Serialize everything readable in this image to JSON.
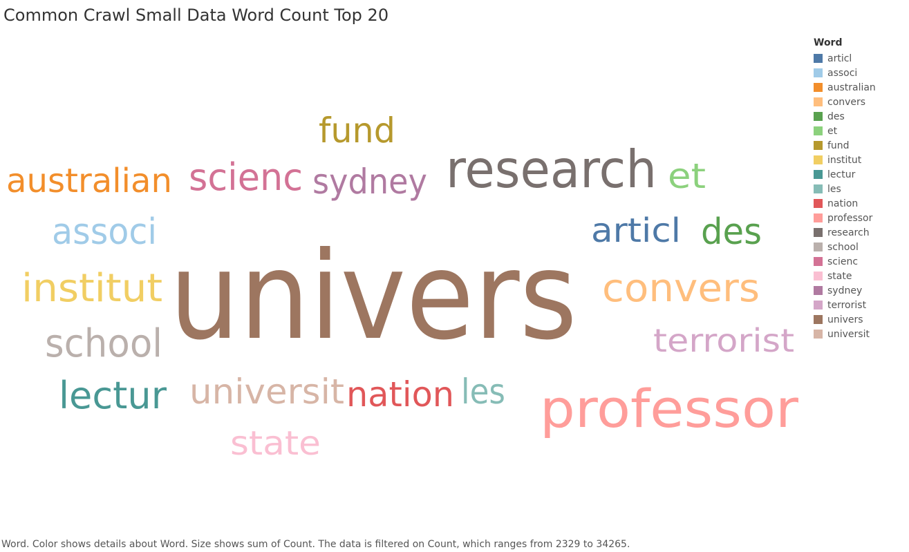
{
  "title": "Common Crawl Small Data Word Count Top 20",
  "legend": {
    "title": "Word"
  },
  "caption": "Word.  Color shows details about Word.  Size shows sum of Count. The data is filtered on Count, which ranges from 2329 to 34265.",
  "chart_data": {
    "type": "wordcloud",
    "title": "Common Crawl Small Data Word Count Top 20",
    "legend_title": "Word",
    "legend_placement": "right",
    "count_range": [
      2329,
      34265
    ],
    "words": [
      {
        "word": "articl",
        "color": "#4e79a7",
        "count": 5400
      },
      {
        "word": "associ",
        "color": "#a0cbe8",
        "count": 5700
      },
      {
        "word": "australian",
        "color": "#f28e2b",
        "count": 5100
      },
      {
        "word": "convers",
        "color": "#ffbe7d",
        "count": 6200
      },
      {
        "word": "des",
        "color": "#59a14f",
        "count": 5300
      },
      {
        "word": "et",
        "color": "#8cd17d",
        "count": 4600
      },
      {
        "word": "fund",
        "color": "#b6992d",
        "count": 5200
      },
      {
        "word": "institut",
        "color": "#f1ce63",
        "count": 6300
      },
      {
        "word": "lectur",
        "color": "#499894",
        "count": 6000
      },
      {
        "word": "les",
        "color": "#86bcb6",
        "count": 2329
      },
      {
        "word": "nation",
        "color": "#e15759",
        "count": 4800
      },
      {
        "word": "professor",
        "color": "#ff9d9a",
        "count": 11000
      },
      {
        "word": "research",
        "color": "#79706e",
        "count": 11000
      },
      {
        "word": "school",
        "color": "#bab0ac",
        "count": 6100
      },
      {
        "word": "scienc",
        "color": "#d37295",
        "count": 5900
      },
      {
        "word": "state",
        "color": "#fabfd2",
        "count": 4200
      },
      {
        "word": "sydney",
        "color": "#b07aa1",
        "count": 4900
      },
      {
        "word": "terrorist",
        "color": "#d4a6c8",
        "count": 4500
      },
      {
        "word": "univers",
        "color": "#9d7660",
        "count": 34265
      },
      {
        "word": "universit",
        "color": "#d7b5a6",
        "count": 5600
      }
    ]
  }
}
